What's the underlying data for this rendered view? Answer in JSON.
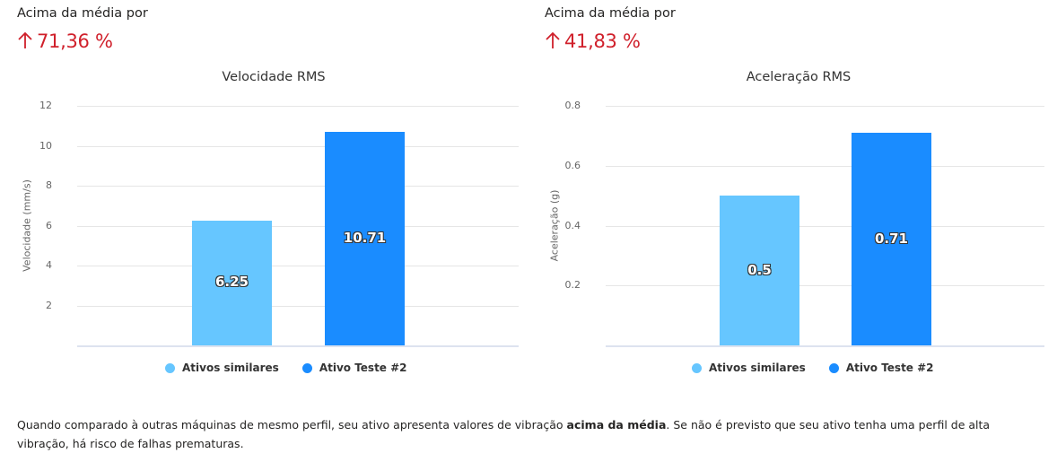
{
  "panels": [
    {
      "kpi_label": "Acima da média por",
      "kpi_value": "71,36 %",
      "kpi_icon": "arrow-up-icon",
      "kpi_color": "#d0202b"
    },
    {
      "kpi_label": "Acima da média por",
      "kpi_value": "41,83 %",
      "kpi_icon": "arrow-up-icon",
      "kpi_color": "#d0202b"
    }
  ],
  "legend": [
    {
      "label": "Ativos similares",
      "color": "#66c6ff"
    },
    {
      "label": "Ativo Teste #2",
      "color": "#1a8cff"
    }
  ],
  "footer": {
    "text_before": "Quando comparado à outras máquinas de mesmo perfil, seu ativo apresenta valores de vibração ",
    "bold": "acima da média",
    "text_after": ". Se não é previsto que seu ativo tenha uma perfil de alta vibração, há risco de falhas prematuras."
  },
  "chart_data": [
    {
      "type": "bar",
      "title": "Velocidade RMS",
      "xlabel": "",
      "ylabel": "Velocidade (mm/s)",
      "ylim": [
        0,
        12
      ],
      "yticks": [
        "2",
        "4",
        "6",
        "8",
        "10",
        "12"
      ],
      "grid": true,
      "legend_position": "bottom",
      "categories": [
        "Ativos similares",
        "Ativo Teste #2"
      ],
      "series": [
        {
          "name": "Ativos similares",
          "values": [
            6.25
          ],
          "color": "#66c6ff"
        },
        {
          "name": "Ativo Teste #2",
          "values": [
            10.71
          ],
          "color": "#1a8cff"
        }
      ],
      "data_labels": [
        "6.25",
        "10.71"
      ]
    },
    {
      "type": "bar",
      "title": "Aceleração RMS",
      "xlabel": "",
      "ylabel": "Aceleração (g)",
      "ylim": [
        0,
        0.8
      ],
      "yticks": [
        "0.2",
        "0.4",
        "0.6",
        "0.8"
      ],
      "grid": true,
      "legend_position": "bottom",
      "categories": [
        "Ativos similares",
        "Ativo Teste #2"
      ],
      "series": [
        {
          "name": "Ativos similares",
          "values": [
            0.5
          ],
          "color": "#66c6ff"
        },
        {
          "name": "Ativo Teste #2",
          "values": [
            0.71
          ],
          "color": "#1a8cff"
        }
      ],
      "data_labels": [
        "0.5",
        "0.71"
      ]
    }
  ]
}
